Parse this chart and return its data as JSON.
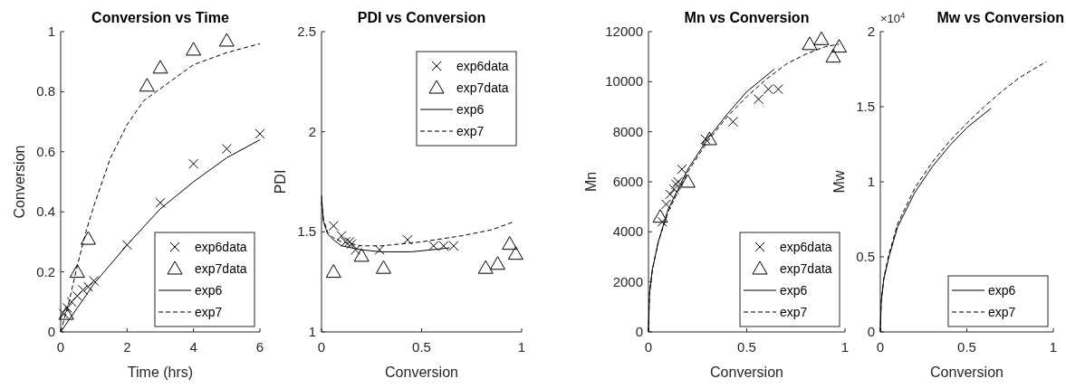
{
  "chart_data": [
    {
      "type": "line",
      "title": "Conversion vs Time",
      "xlabel": "Time (hrs)",
      "ylabel": "Conversion",
      "xlim": [
        0,
        6
      ],
      "ylim": [
        0,
        1
      ],
      "xticks": [
        0,
        2,
        4,
        6
      ],
      "yticks": [
        0,
        0.2,
        0.4,
        0.6,
        0.8,
        1
      ],
      "legend": "bottom right",
      "series": [
        {
          "name": "exp6data",
          "type": "scatter",
          "marker": "cross",
          "color": "#000000",
          "x": [
            0.1,
            0.2,
            0.33,
            0.5,
            0.67,
            0.83,
            1,
            2,
            3,
            4,
            5,
            6
          ],
          "values": [
            0.06,
            0.08,
            0.1,
            0.12,
            0.14,
            0.15,
            0.17,
            0.29,
            0.43,
            0.56,
            0.61,
            0.66
          ]
        },
        {
          "name": "exp7data",
          "type": "scatter",
          "marker": "triangle",
          "color": "#000000",
          "x": [
            0.17,
            0.5,
            0.83,
            2.6,
            3,
            4,
            5
          ],
          "values": [
            0.06,
            0.2,
            0.31,
            0.82,
            0.88,
            0.94,
            0.97
          ]
        },
        {
          "name": "exp6",
          "line_style": "solid",
          "color": "#000000",
          "x": [
            0,
            0.5,
            1,
            2,
            3,
            4,
            5,
            6
          ],
          "values": [
            0,
            0.08,
            0.16,
            0.29,
            0.41,
            0.5,
            0.58,
            0.64
          ]
        },
        {
          "name": "exp7",
          "line_style": "dashed",
          "color": "#000000",
          "x": [
            0,
            0.25,
            0.5,
            0.75,
            1,
            1.5,
            2,
            2.5,
            3,
            4,
            5,
            6
          ],
          "values": [
            0,
            0.1,
            0.22,
            0.33,
            0.42,
            0.58,
            0.69,
            0.77,
            0.81,
            0.89,
            0.93,
            0.96
          ]
        }
      ]
    },
    {
      "type": "line",
      "title": "PDI vs Conversion",
      "xlabel": "Conversion",
      "ylabel": "PDI",
      "xlim": [
        0,
        1
      ],
      "ylim": [
        1,
        2.5
      ],
      "xticks": [
        0,
        0.5,
        1
      ],
      "yticks": [
        1,
        1.5,
        2,
        2.5
      ],
      "legend": "top right",
      "series": [
        {
          "name": "exp6data",
          "type": "scatter",
          "marker": "cross",
          "color": "#000000",
          "x": [
            0.06,
            0.1,
            0.12,
            0.14,
            0.15,
            0.17,
            0.29,
            0.43,
            0.56,
            0.61,
            0.66
          ],
          "values": [
            1.53,
            1.48,
            1.45,
            1.45,
            1.44,
            1.41,
            1.41,
            1.46,
            1.43,
            1.43,
            1.43
          ]
        },
        {
          "name": "exp7data",
          "type": "scatter",
          "marker": "triangle",
          "color": "#000000",
          "x": [
            0.06,
            0.2,
            0.31,
            0.82,
            0.88,
            0.94,
            0.97
          ],
          "values": [
            1.3,
            1.38,
            1.32,
            1.32,
            1.34,
            1.44,
            1.39
          ]
        },
        {
          "name": "exp6",
          "line_style": "solid",
          "color": "#000000",
          "x": [
            0,
            0.01,
            0.03,
            0.06,
            0.1,
            0.2,
            0.3,
            0.45,
            0.64
          ],
          "values": [
            1.68,
            1.55,
            1.49,
            1.46,
            1.43,
            1.41,
            1.4,
            1.4,
            1.42
          ]
        },
        {
          "name": "exp7",
          "line_style": "dashed",
          "color": "#000000",
          "x": [
            0,
            0.01,
            0.03,
            0.06,
            0.1,
            0.2,
            0.3,
            0.5,
            0.7,
            0.85,
            0.96
          ],
          "values": [
            1.65,
            1.56,
            1.5,
            1.47,
            1.45,
            1.43,
            1.43,
            1.45,
            1.48,
            1.51,
            1.55
          ]
        }
      ]
    },
    {
      "type": "line",
      "title": "Mn vs Conversion",
      "xlabel": "Conversion",
      "ylabel": "Mn",
      "xlim": [
        0,
        1
      ],
      "ylim": [
        0,
        12000
      ],
      "xticks": [
        0,
        0.5,
        1
      ],
      "yticks": [
        0,
        2000,
        4000,
        6000,
        8000,
        10000,
        12000
      ],
      "legend": "bottom right",
      "series": [
        {
          "name": "exp6data",
          "type": "scatter",
          "marker": "cross",
          "color": "#000000",
          "x": [
            0.07,
            0.09,
            0.11,
            0.13,
            0.14,
            0.15,
            0.17,
            0.29,
            0.43,
            0.56,
            0.61,
            0.66
          ],
          "values": [
            4400,
            5100,
            5500,
            5700,
            5900,
            6000,
            6500,
            7700,
            8400,
            9300,
            9700,
            9700
          ]
        },
        {
          "name": "exp7data",
          "type": "scatter",
          "marker": "triangle",
          "color": "#000000",
          "x": [
            0.06,
            0.2,
            0.31,
            0.82,
            0.88,
            0.94,
            0.97
          ],
          "values": [
            4600,
            6000,
            7700,
            11500,
            11700,
            11000,
            11400
          ]
        },
        {
          "name": "exp6",
          "line_style": "solid",
          "color": "#000000",
          "x": [
            0,
            0.005,
            0.02,
            0.05,
            0.1,
            0.2,
            0.3,
            0.4,
            0.5,
            0.64
          ],
          "values": [
            0,
            1500,
            2500,
            3600,
            4900,
            6500,
            7700,
            8700,
            9600,
            10500
          ]
        },
        {
          "name": "exp7",
          "line_style": "dashed",
          "color": "#000000",
          "x": [
            0,
            0.005,
            0.02,
            0.05,
            0.1,
            0.2,
            0.3,
            0.4,
            0.5,
            0.6,
            0.7,
            0.8,
            0.9,
            0.97
          ],
          "values": [
            0,
            1500,
            2500,
            3600,
            4800,
            6400,
            7600,
            8600,
            9400,
            10100,
            10700,
            11100,
            11400,
            11500
          ]
        }
      ]
    },
    {
      "type": "line",
      "title": "Mw vs Conversion",
      "xlabel": "Conversion",
      "ylabel": "Mw",
      "xlim": [
        0,
        1
      ],
      "ylim": [
        0,
        2
      ],
      "xticks": [
        0,
        0.5,
        1
      ],
      "yticks": [
        0,
        0.5,
        1,
        1.5,
        2
      ],
      "legend": "bottom right",
      "annotations": [
        "×10$^{4}$"
      ],
      "series": [
        {
          "name": "exp6",
          "line_style": "solid",
          "color": "#000000",
          "x": [
            0,
            0.005,
            0.02,
            0.05,
            0.1,
            0.2,
            0.3,
            0.4,
            0.5,
            0.64
          ],
          "values": [
            0,
            0.2,
            0.35,
            0.5,
            0.7,
            0.93,
            1.1,
            1.24,
            1.36,
            1.49
          ]
        },
        {
          "name": "exp7",
          "line_style": "dashed",
          "color": "#000000",
          "x": [
            0,
            0.005,
            0.02,
            0.05,
            0.1,
            0.2,
            0.3,
            0.4,
            0.5,
            0.6,
            0.7,
            0.8,
            0.9,
            0.96
          ],
          "values": [
            0,
            0.2,
            0.36,
            0.52,
            0.72,
            0.96,
            1.13,
            1.27,
            1.39,
            1.5,
            1.6,
            1.69,
            1.76,
            1.8
          ]
        }
      ]
    }
  ]
}
